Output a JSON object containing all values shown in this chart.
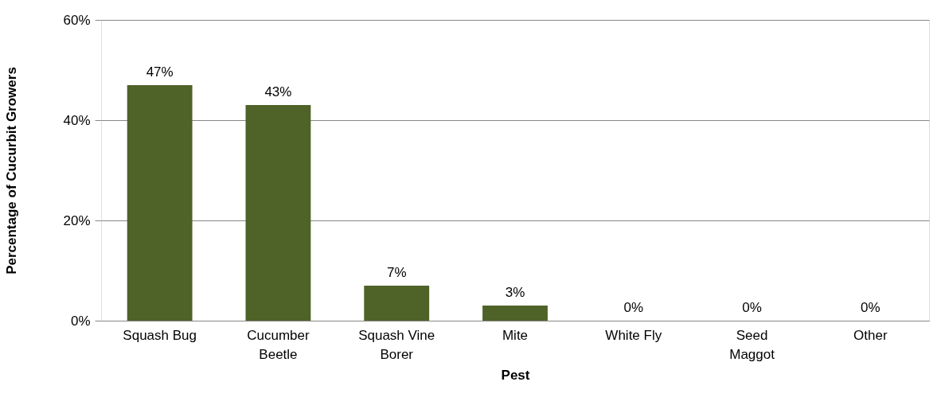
{
  "chart_data": {
    "type": "bar",
    "categories": [
      "Squash Bug",
      "Cucumber\nBeetle",
      "Squash Vine\nBorer",
      "Mite",
      "White Fly",
      "Seed\nMaggot",
      "Other"
    ],
    "values": [
      47,
      43,
      7,
      3,
      0,
      0,
      0
    ],
    "value_labels": [
      "47%",
      "43%",
      "7%",
      "3%",
      "0%",
      "0%",
      "0%"
    ],
    "color": "#4f6228",
    "xlabel": "Pest",
    "ylabel": "Percentage of Cucurbit Growers",
    "ylim": [
      0,
      60
    ],
    "yticks": [
      {
        "value": 0,
        "label": "0%"
      },
      {
        "value": 20,
        "label": "20%"
      },
      {
        "value": 40,
        "label": "40%"
      },
      {
        "value": 60,
        "label": "60%"
      }
    ],
    "grid": "y"
  }
}
